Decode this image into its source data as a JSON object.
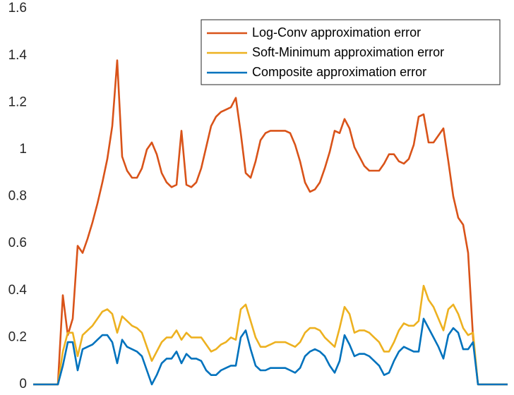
{
  "chart_data": {
    "type": "line",
    "categories": [
      null,
      null,
      null,
      null,
      null,
      null,
      null,
      null,
      null,
      null,
      null,
      null,
      null,
      null,
      null,
      null,
      null,
      null,
      null,
      null,
      null,
      null,
      null,
      null,
      null,
      null,
      null,
      null,
      null,
      null,
      null,
      null,
      null,
      null,
      null,
      null,
      null,
      null,
      null,
      null,
      null,
      null,
      null,
      null,
      null,
      null,
      null,
      null,
      null,
      null,
      null,
      null,
      null,
      null,
      null,
      null,
      null,
      null,
      null,
      null,
      null,
      null,
      null,
      null,
      null,
      null,
      null,
      null,
      null,
      null,
      null,
      null,
      null,
      null,
      null,
      null,
      null,
      null,
      null,
      null,
      null,
      null,
      null,
      null,
      null,
      null,
      null,
      null,
      null,
      null,
      null,
      null,
      null,
      null,
      null,
      null,
      null
    ],
    "series": [
      {
        "name": "Log-Conv approximation error",
        "color": "#D95319",
        "values": [
          0,
          0,
          0,
          0,
          0,
          0,
          0.38,
          0.21,
          0.28,
          0.59,
          0.56,
          0.62,
          0.69,
          0.77,
          0.86,
          0.96,
          1.1,
          1.38,
          0.97,
          0.91,
          0.88,
          0.88,
          0.92,
          1.0,
          1.03,
          0.98,
          0.9,
          0.86,
          0.84,
          0.85,
          1.08,
          0.85,
          0.84,
          0.86,
          0.92,
          1.01,
          1.1,
          1.14,
          1.16,
          1.17,
          1.18,
          1.22,
          1.07,
          0.9,
          0.88,
          0.95,
          1.04,
          1.07,
          1.08,
          1.08,
          1.08,
          1.08,
          1.07,
          1.02,
          0.95,
          0.86,
          0.82,
          0.83,
          0.86,
          0.92,
          0.99,
          1.08,
          1.07,
          1.13,
          1.09,
          1.01,
          0.97,
          0.93,
          0.91,
          0.91,
          0.91,
          0.94,
          0.98,
          0.98,
          0.95,
          0.94,
          0.96,
          1.02,
          1.14,
          1.15,
          1.03,
          1.03,
          1.06,
          1.09,
          0.95,
          0.8,
          0.71,
          0.68,
          0.56,
          0.2,
          0,
          0,
          0,
          0,
          0,
          0,
          0
        ]
      },
      {
        "name": "Soft-Minimum approximation error",
        "color": "#EDB120",
        "values": [
          0,
          0,
          0,
          0,
          0,
          0,
          0.14,
          0.22,
          0.22,
          0.12,
          0.21,
          0.23,
          0.25,
          0.28,
          0.31,
          0.32,
          0.3,
          0.22,
          0.29,
          0.27,
          0.25,
          0.24,
          0.22,
          0.16,
          0.1,
          0.14,
          0.18,
          0.2,
          0.2,
          0.23,
          0.19,
          0.22,
          0.2,
          0.2,
          0.2,
          0.17,
          0.14,
          0.15,
          0.17,
          0.18,
          0.2,
          0.19,
          0.32,
          0.34,
          0.27,
          0.2,
          0.16,
          0.16,
          0.17,
          0.18,
          0.18,
          0.18,
          0.17,
          0.16,
          0.18,
          0.22,
          0.24,
          0.24,
          0.23,
          0.2,
          0.18,
          0.16,
          0.24,
          0.33,
          0.3,
          0.22,
          0.23,
          0.23,
          0.22,
          0.2,
          0.18,
          0.14,
          0.14,
          0.18,
          0.23,
          0.26,
          0.25,
          0.25,
          0.27,
          0.42,
          0.36,
          0.33,
          0.28,
          0.23,
          0.32,
          0.34,
          0.3,
          0.24,
          0.21,
          0.22,
          0,
          0,
          0,
          0,
          0,
          0,
          0
        ]
      },
      {
        "name": "Composite approximation error",
        "color": "#0072BD",
        "values": [
          0,
          0,
          0,
          0,
          0,
          0,
          0.08,
          0.18,
          0.18,
          0.06,
          0.15,
          0.16,
          0.17,
          0.19,
          0.21,
          0.21,
          0.18,
          0.09,
          0.19,
          0.16,
          0.15,
          0.14,
          0.12,
          0.06,
          0,
          0.04,
          0.09,
          0.11,
          0.11,
          0.14,
          0.09,
          0.13,
          0.11,
          0.11,
          0.1,
          0.06,
          0.04,
          0.04,
          0.06,
          0.07,
          0.08,
          0.08,
          0.2,
          0.23,
          0.15,
          0.08,
          0.06,
          0.06,
          0.07,
          0.07,
          0.07,
          0.07,
          0.06,
          0.05,
          0.07,
          0.12,
          0.14,
          0.15,
          0.14,
          0.12,
          0.08,
          0.05,
          0.1,
          0.21,
          0.17,
          0.12,
          0.13,
          0.13,
          0.12,
          0.1,
          0.08,
          0.04,
          0.05,
          0.1,
          0.14,
          0.16,
          0.15,
          0.14,
          0.14,
          0.28,
          0.24,
          0.2,
          0.16,
          0.11,
          0.21,
          0.24,
          0.22,
          0.15,
          0.15,
          0.18,
          0,
          0,
          0,
          0,
          0,
          0,
          0
        ]
      }
    ],
    "ylim": [
      0,
      1.6
    ],
    "yticks": [
      0,
      0.2,
      0.4,
      0.6,
      0.8,
      1,
      1.2,
      1.4,
      1.6
    ],
    "legend": "upper right"
  }
}
